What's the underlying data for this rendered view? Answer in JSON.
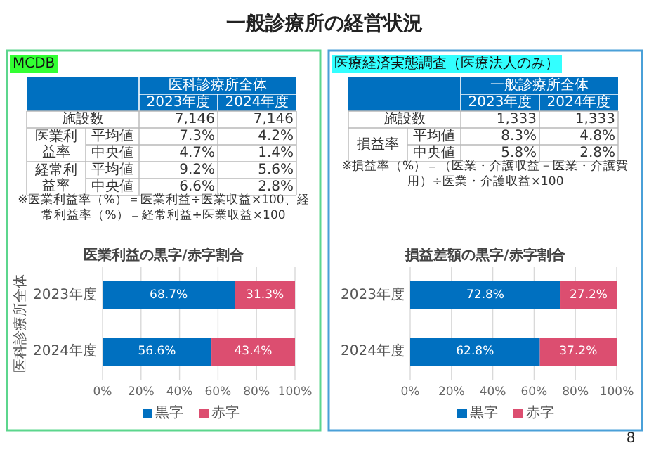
{
  "chart_data": [
    {
      "type": "other",
      "title": "一般診療所の経営状況",
      "annotations": [
        "8"
      ]
    },
    {
      "type": "other",
      "title": "MCDB",
      "subtitle": "医科診療所全体",
      "categories": [
        "2023年度",
        "2024年度"
      ],
      "y_categories": [
        "施設数",
        "医業利益率",
        null,
        "経常利益率",
        null
      ],
      "y2_categories": [
        null,
        "平均値",
        "中央値",
        "平均値",
        "中央値"
      ],
      "cell_labels": [
        [
          "7,146",
          "7,146"
        ],
        [
          "7.3%",
          "4.2%"
        ],
        [
          "4.7%",
          "1.4%"
        ],
        [
          "9.2%",
          "5.6%"
        ],
        [
          "6.6%",
          "2.8%"
        ]
      ],
      "annotations": [
        "※医業利益率（%）＝医業利益÷医業収益×100、経常利益率（%）＝経常利益÷医業収益×100"
      ]
    },
    {
      "type": "bar",
      "orientation": "horizontal",
      "stacked": true,
      "title": "医業利益の黒字/赤字割合",
      "ylabel": "医科診療所全体",
      "categories": [
        "2023年度",
        "2024年度"
      ],
      "series": [
        {
          "name": "黒字",
          "color": "#0070c0",
          "values": [
            68.7,
            56.6
          ],
          "value_labels": [
            "68.7%",
            "56.6%"
          ]
        },
        {
          "name": "赤字",
          "color": "#dc4e70",
          "values": [
            31.3,
            43.4
          ],
          "value_labels": [
            "31.3%",
            "43.4%"
          ]
        }
      ],
      "xlim": [
        0,
        100
      ],
      "xticks": [
        {
          "value": 0,
          "label": "0%"
        },
        {
          "value": 20,
          "label": "20%"
        },
        {
          "value": 40,
          "label": "40%"
        },
        {
          "value": 60,
          "label": "60%"
        },
        {
          "value": 80,
          "label": "80%"
        },
        {
          "value": 100,
          "label": "100%"
        }
      ],
      "grid": "x",
      "legend": "bottom"
    },
    {
      "type": "other",
      "title": "医療経済実態調査（医療法人のみ）",
      "subtitle": "一般診療所全体",
      "categories": [
        "2023年度",
        "2024年度"
      ],
      "y_categories": [
        "施設数",
        "損益率",
        null
      ],
      "y2_categories": [
        null,
        "平均値",
        "中央値"
      ],
      "cell_labels": [
        [
          "1,333",
          "1,333"
        ],
        [
          "8.3%",
          "4.8%"
        ],
        [
          "5.8%",
          "2.8%"
        ]
      ],
      "annotations": [
        "※損益率（%）＝（医業・介護収益－医業・介護費用）÷医業・介護収益×100"
      ]
    },
    {
      "type": "bar",
      "orientation": "horizontal",
      "stacked": true,
      "title": "損益差額の黒字/赤字割合",
      "categories": [
        "2023年度",
        "2024年度"
      ],
      "series": [
        {
          "name": "黒字",
          "color": "#0070c0",
          "values": [
            72.8,
            62.8
          ],
          "value_labels": [
            "72.8%",
            "62.8%"
          ]
        },
        {
          "name": "赤字",
          "color": "#dc4e70",
          "values": [
            27.2,
            37.2
          ],
          "value_labels": [
            "27.2%",
            "37.2%"
          ]
        }
      ],
      "xlim": [
        0,
        100
      ],
      "xticks": [
        {
          "value": 0,
          "label": "0%"
        },
        {
          "value": 20,
          "label": "20%"
        },
        {
          "value": 40,
          "label": "40%"
        },
        {
          "value": 60,
          "label": "60%"
        },
        {
          "value": 80,
          "label": "80%"
        },
        {
          "value": 100,
          "label": "100%"
        }
      ],
      "grid": "x",
      "legend": "bottom"
    }
  ]
}
